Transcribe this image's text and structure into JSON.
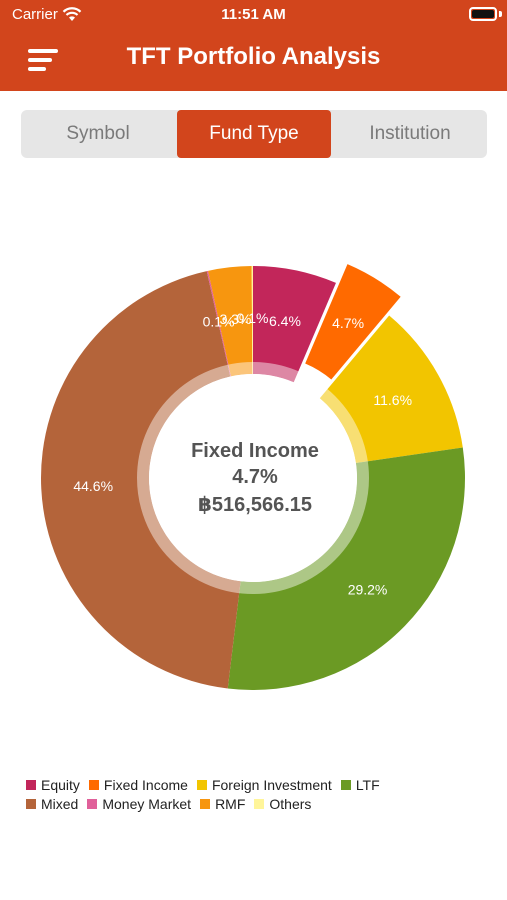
{
  "status_bar": {
    "carrier": "Carrier",
    "time": "11:51 AM"
  },
  "header": {
    "title": "TFT Portfolio Analysis"
  },
  "tabs": [
    {
      "label": "Symbol",
      "active": false
    },
    {
      "label": "Fund Type",
      "active": true
    },
    {
      "label": "Institution",
      "active": false
    }
  ],
  "selected": {
    "label": "Fixed Income",
    "percent": "4.7%",
    "amount": "฿516,566.15"
  },
  "chart_data": {
    "type": "pie",
    "donut": true,
    "selected_category": "Fixed Income",
    "categories": [
      "Equity",
      "Fixed Income",
      "Foreign Investment",
      "LTF",
      "Mixed",
      "Money Market",
      "RMF",
      "Others"
    ],
    "values": [
      6.4,
      4.7,
      11.6,
      29.2,
      44.6,
      0.1,
      3.3,
      0.1
    ],
    "labels": [
      "6.4%",
      "4.7%",
      "11.6%",
      "29.2%",
      "44.6%",
      "0.1%",
      "3.3%",
      "0.1%"
    ],
    "colors": [
      "#c2265a",
      "#ff6a00",
      "#f2c500",
      "#6b9a24",
      "#b4643a",
      "#e0609a",
      "#f7960f",
      "#fff59a"
    ],
    "legend_position": "bottom"
  },
  "legend_rows": [
    [
      "Equity",
      "Fixed Income",
      "Foreign Investment",
      "LTF"
    ],
    [
      "Mixed",
      "Money Market",
      "RMF",
      "Others"
    ]
  ]
}
